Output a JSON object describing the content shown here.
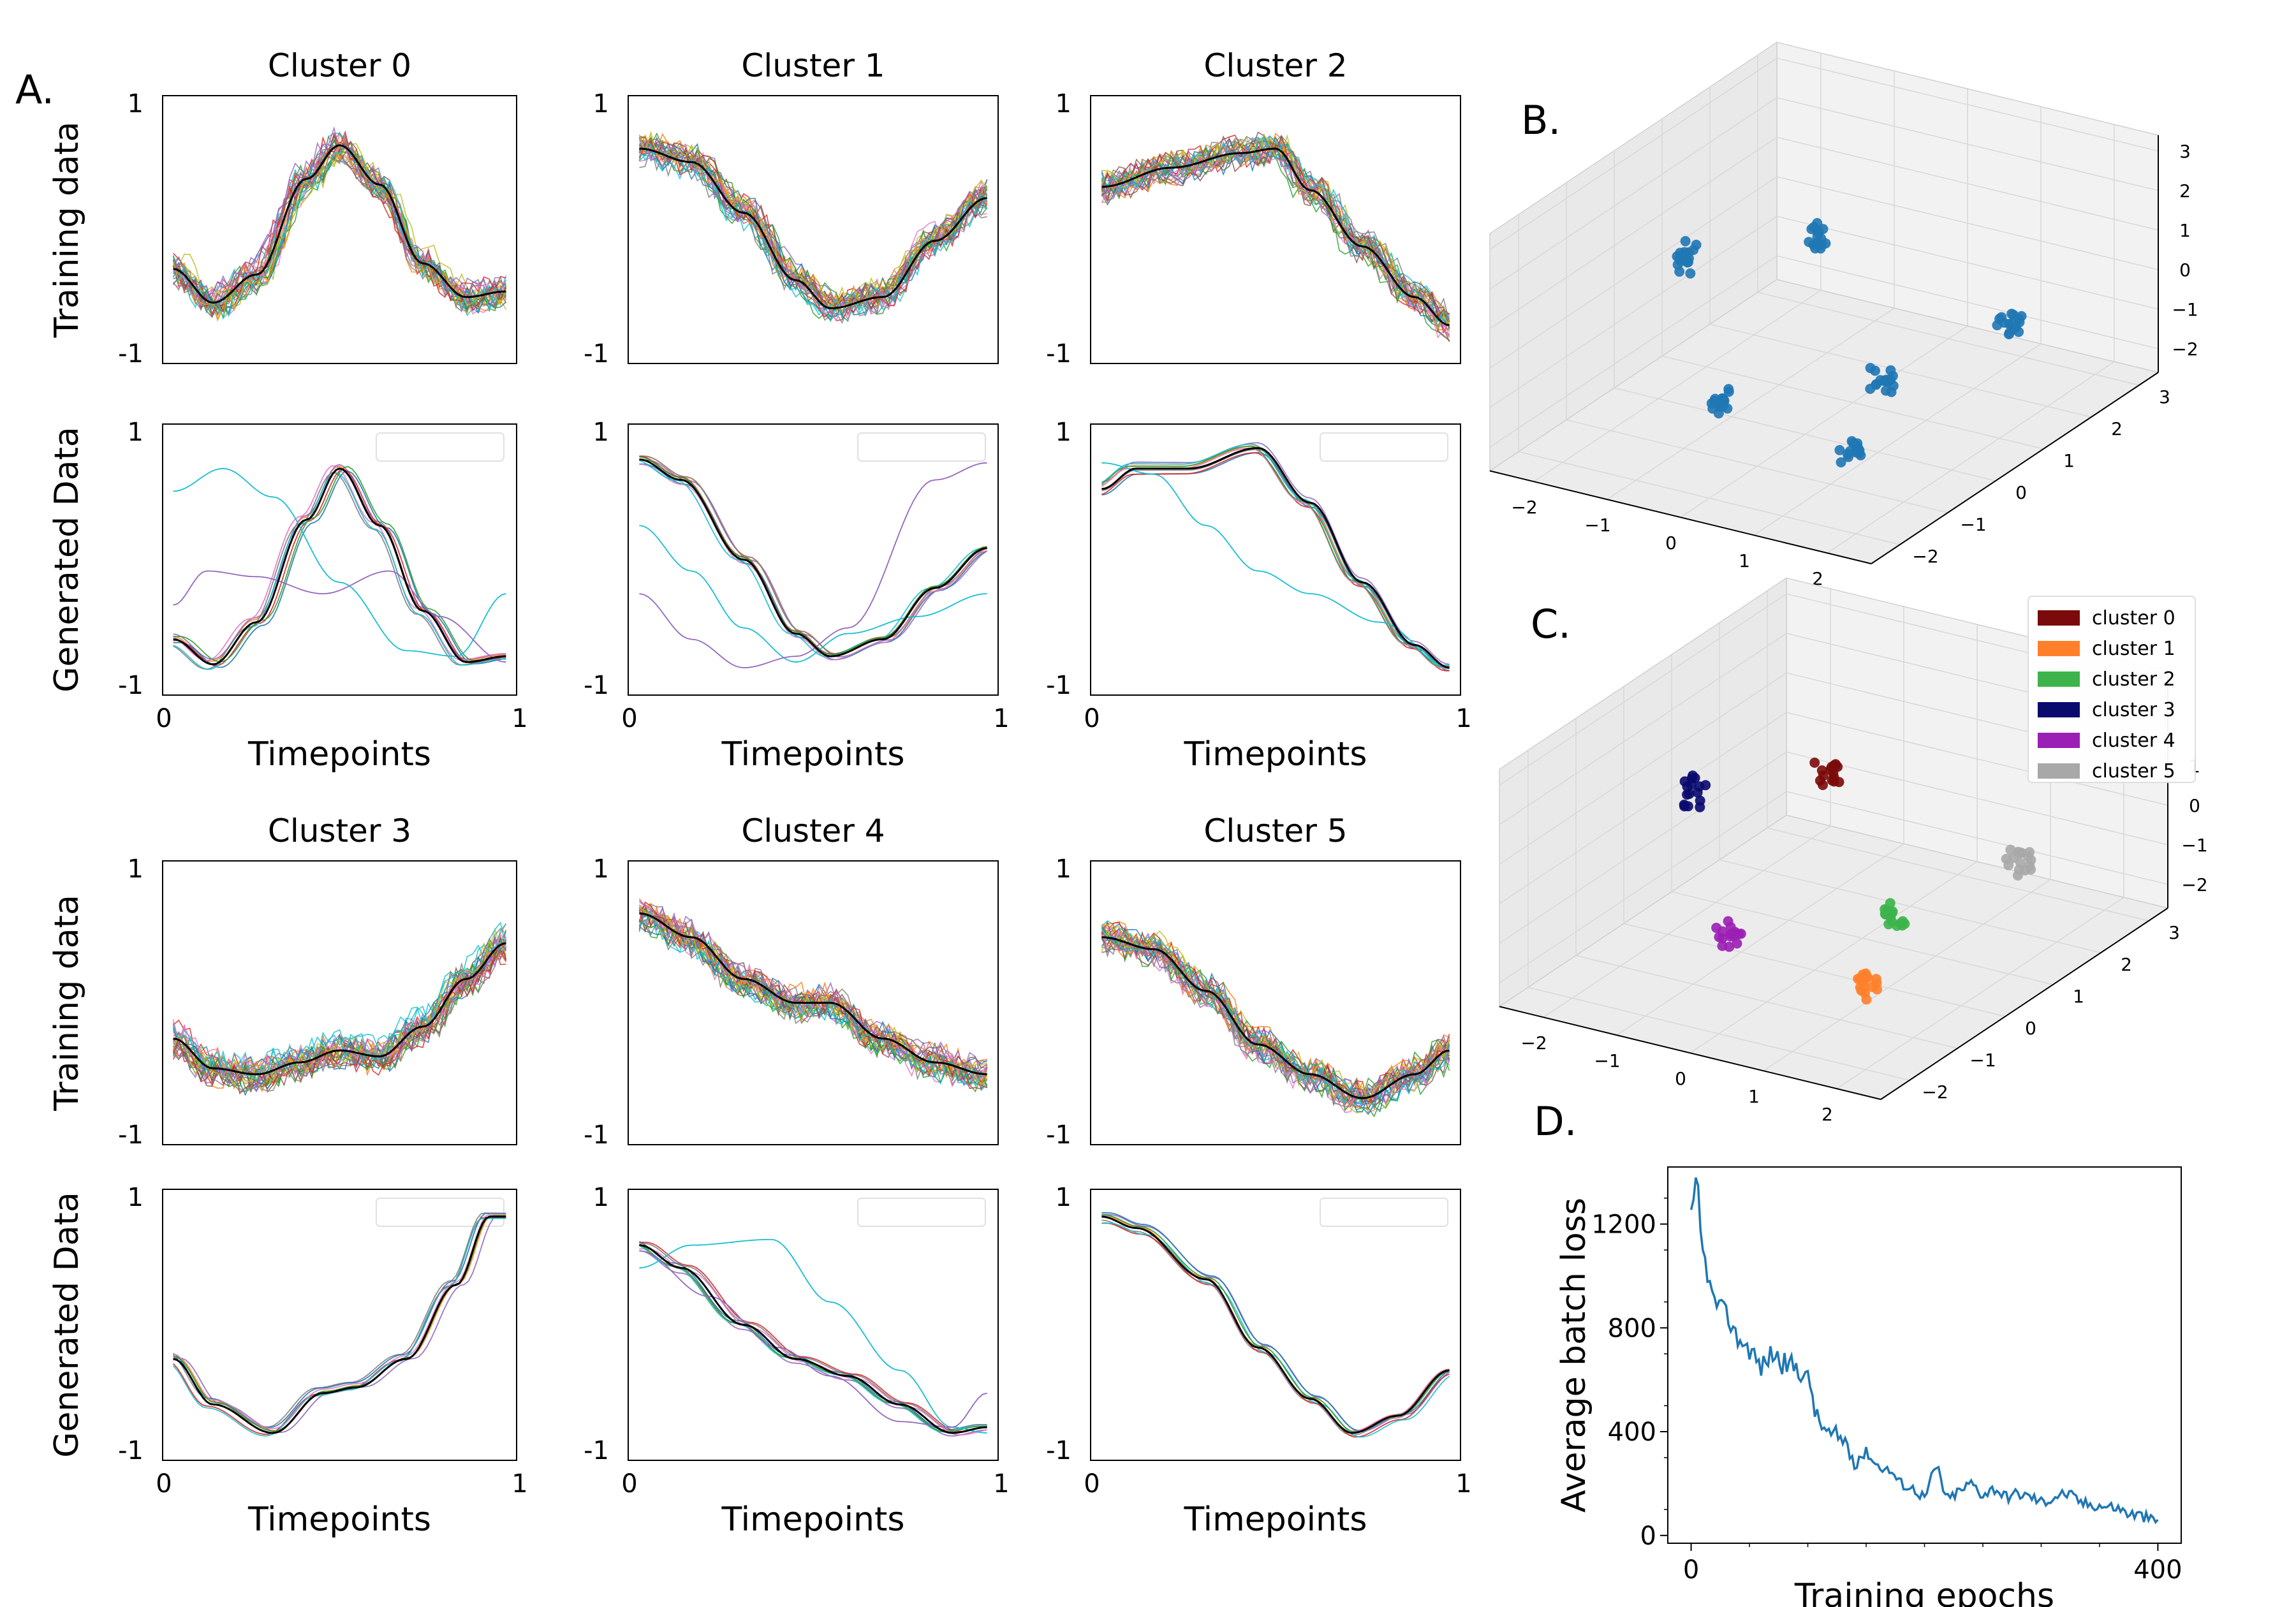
{
  "panel_labels": {
    "A": "A.",
    "B": "B.",
    "C": "C.",
    "D": "D."
  },
  "chart_data": [
    {
      "type": "line",
      "panel": "A",
      "title": "Cluster 0",
      "ylabel_training": "Training data",
      "ylabel_generated": "Generated  Data",
      "xlabel": "Timepoints",
      "xlim": [
        0,
        1
      ],
      "ylim": [
        -1,
        1
      ],
      "x_ticks": [
        "0",
        "1"
      ],
      "y_ticks": [
        "-1",
        "1"
      ],
      "training_mean": [
        [
          0.0,
          -0.35
        ],
        [
          0.12,
          -0.65
        ],
        [
          0.25,
          -0.4
        ],
        [
          0.4,
          0.45
        ],
        [
          0.5,
          0.75
        ],
        [
          0.62,
          0.4
        ],
        [
          0.75,
          -0.3
        ],
        [
          0.88,
          -0.6
        ],
        [
          1.0,
          -0.55
        ]
      ],
      "generated_mean": [
        [
          0.0,
          -0.7
        ],
        [
          0.12,
          -0.92
        ],
        [
          0.25,
          -0.55
        ],
        [
          0.4,
          0.35
        ],
        [
          0.5,
          0.8
        ],
        [
          0.62,
          0.3
        ],
        [
          0.75,
          -0.45
        ],
        [
          0.88,
          -0.9
        ],
        [
          1.0,
          -0.85
        ]
      ],
      "generated_outliers": [
        [
          [
            0.0,
            0.6
          ],
          [
            0.15,
            0.8
          ],
          [
            0.3,
            0.55
          ],
          [
            0.5,
            -0.2
          ],
          [
            0.7,
            -0.8
          ],
          [
            0.85,
            -0.85
          ],
          [
            1.0,
            -0.3
          ]
        ],
        [
          [
            0.0,
            -0.4
          ],
          [
            0.1,
            -0.1
          ],
          [
            0.25,
            -0.15
          ],
          [
            0.45,
            -0.3
          ],
          [
            0.65,
            -0.1
          ],
          [
            0.8,
            -0.5
          ],
          [
            1.0,
            -0.9
          ]
        ]
      ]
    },
    {
      "type": "line",
      "panel": "A",
      "title": "Cluster 1",
      "xlabel": "Timepoints",
      "xlim": [
        0,
        1
      ],
      "ylim": [
        -1,
        1
      ],
      "x_ticks": [
        "0",
        "1"
      ],
      "y_ticks": [
        "-1",
        "1"
      ],
      "training_mean": [
        [
          0.0,
          0.72
        ],
        [
          0.15,
          0.6
        ],
        [
          0.3,
          0.15
        ],
        [
          0.45,
          -0.45
        ],
        [
          0.55,
          -0.7
        ],
        [
          0.7,
          -0.6
        ],
        [
          0.85,
          -0.1
        ],
        [
          1.0,
          0.28
        ]
      ],
      "generated_mean": [
        [
          0.0,
          0.88
        ],
        [
          0.12,
          0.7
        ],
        [
          0.3,
          0.0
        ],
        [
          0.45,
          -0.65
        ],
        [
          0.55,
          -0.85
        ],
        [
          0.7,
          -0.7
        ],
        [
          0.85,
          -0.25
        ],
        [
          1.0,
          0.1
        ]
      ],
      "generated_outliers": [
        [
          [
            0.0,
            0.3
          ],
          [
            0.15,
            -0.1
          ],
          [
            0.3,
            -0.6
          ],
          [
            0.45,
            -0.9
          ],
          [
            0.6,
            -0.65
          ],
          [
            0.8,
            -0.5
          ],
          [
            1.0,
            -0.3
          ]
        ],
        [
          [
            0.0,
            -0.3
          ],
          [
            0.15,
            -0.7
          ],
          [
            0.3,
            -0.95
          ],
          [
            0.45,
            -0.85
          ],
          [
            0.6,
            -0.6
          ],
          [
            0.85,
            0.7
          ],
          [
            1.0,
            0.85
          ]
        ]
      ]
    },
    {
      "type": "line",
      "panel": "A",
      "title": "Cluster 2",
      "xlabel": "Timepoints",
      "xlim": [
        0,
        1
      ],
      "ylim": [
        -1,
        1
      ],
      "x_ticks": [
        "0",
        "1"
      ],
      "y_ticks": [
        "-1",
        "1"
      ],
      "training_mean": [
        [
          0.0,
          0.38
        ],
        [
          0.2,
          0.55
        ],
        [
          0.4,
          0.68
        ],
        [
          0.5,
          0.72
        ],
        [
          0.6,
          0.35
        ],
        [
          0.75,
          -0.15
        ],
        [
          0.9,
          -0.6
        ],
        [
          1.0,
          -0.85
        ]
      ],
      "generated_mean": [
        [
          0.0,
          0.62
        ],
        [
          0.1,
          0.8
        ],
        [
          0.25,
          0.8
        ],
        [
          0.45,
          0.98
        ],
        [
          0.6,
          0.5
        ],
        [
          0.75,
          -0.2
        ],
        [
          0.9,
          -0.75
        ],
        [
          1.0,
          -0.95
        ]
      ],
      "generated_outliers": [
        [
          [
            0.0,
            0.85
          ],
          [
            0.15,
            0.75
          ],
          [
            0.3,
            0.3
          ],
          [
            0.45,
            -0.1
          ],
          [
            0.6,
            -0.3
          ],
          [
            0.8,
            -0.55
          ],
          [
            1.0,
            -0.95
          ]
        ]
      ]
    },
    {
      "type": "line",
      "panel": "A",
      "title": "Cluster 3",
      "ylabel_training": "Training data",
      "ylabel_generated": "Generated  Data",
      "xlabel": "Timepoints",
      "xlim": [
        0,
        1
      ],
      "ylim": [
        -1,
        1
      ],
      "x_ticks": [
        "0",
        "1"
      ],
      "y_ticks": [
        "-1",
        "1"
      ],
      "training_mean": [
        [
          0.0,
          -0.3
        ],
        [
          0.12,
          -0.55
        ],
        [
          0.25,
          -0.6
        ],
        [
          0.38,
          -0.5
        ],
        [
          0.5,
          -0.4
        ],
        [
          0.62,
          -0.45
        ],
        [
          0.75,
          -0.2
        ],
        [
          0.88,
          0.2
        ],
        [
          1.0,
          0.5
        ]
      ],
      "generated_mean": [
        [
          0.0,
          -0.3
        ],
        [
          0.12,
          -0.7
        ],
        [
          0.3,
          -0.95
        ],
        [
          0.45,
          -0.6
        ],
        [
          0.55,
          -0.55
        ],
        [
          0.7,
          -0.3
        ],
        [
          0.85,
          0.35
        ],
        [
          0.95,
          0.95
        ],
        [
          1.0,
          0.95
        ]
      ],
      "generated_outliers": []
    },
    {
      "type": "line",
      "panel": "A",
      "title": "Cluster 4",
      "xlabel": "Timepoints",
      "xlim": [
        0,
        1
      ],
      "ylim": [
        -1,
        1
      ],
      "x_ticks": [
        "0",
        "1"
      ],
      "y_ticks": [
        "-1",
        "1"
      ],
      "training_mean": [
        [
          0.0,
          0.75
        ],
        [
          0.15,
          0.55
        ],
        [
          0.3,
          0.2
        ],
        [
          0.45,
          0.0
        ],
        [
          0.55,
          0.0
        ],
        [
          0.7,
          -0.3
        ],
        [
          0.85,
          -0.5
        ],
        [
          1.0,
          -0.6
        ]
      ],
      "generated_mean": [
        [
          0.0,
          0.7
        ],
        [
          0.12,
          0.5
        ],
        [
          0.3,
          0.0
        ],
        [
          0.45,
          -0.3
        ],
        [
          0.6,
          -0.45
        ],
        [
          0.75,
          -0.7
        ],
        [
          0.9,
          -0.95
        ],
        [
          1.0,
          -0.9
        ]
      ],
      "generated_outliers": [
        [
          [
            0.0,
            0.5
          ],
          [
            0.15,
            0.7
          ],
          [
            0.38,
            0.75
          ],
          [
            0.55,
            0.2
          ],
          [
            0.75,
            -0.4
          ],
          [
            0.9,
            -0.9
          ],
          [
            1.0,
            -0.95
          ]
        ],
        [
          [
            0.0,
            0.65
          ],
          [
            0.2,
            0.25
          ],
          [
            0.4,
            -0.2
          ],
          [
            0.55,
            -0.45
          ],
          [
            0.75,
            -0.85
          ],
          [
            0.9,
            -0.9
          ],
          [
            1.0,
            -0.6
          ]
        ]
      ]
    },
    {
      "type": "line",
      "panel": "A",
      "title": "Cluster 5",
      "xlabel": "Timepoints",
      "xlim": [
        0,
        1
      ],
      "ylim": [
        -1,
        1
      ],
      "x_ticks": [
        "0",
        "1"
      ],
      "y_ticks": [
        "-1",
        "1"
      ],
      "training_mean": [
        [
          0.0,
          0.55
        ],
        [
          0.15,
          0.45
        ],
        [
          0.3,
          0.1
        ],
        [
          0.45,
          -0.35
        ],
        [
          0.6,
          -0.6
        ],
        [
          0.75,
          -0.8
        ],
        [
          0.9,
          -0.6
        ],
        [
          1.0,
          -0.4
        ]
      ],
      "generated_mean": [
        [
          0.0,
          0.95
        ],
        [
          0.1,
          0.85
        ],
        [
          0.3,
          0.4
        ],
        [
          0.45,
          -0.2
        ],
        [
          0.6,
          -0.65
        ],
        [
          0.72,
          -0.95
        ],
        [
          0.85,
          -0.8
        ],
        [
          1.0,
          -0.4
        ]
      ],
      "generated_outliers": []
    },
    {
      "type": "scatter",
      "panel": "B",
      "subtype": "3d",
      "x_ticks": [
        "−2",
        "−1",
        "0",
        "1",
        "2"
      ],
      "y_ticks": [
        "−2",
        "−1",
        "0",
        "1",
        "2",
        "3"
      ],
      "z_ticks": [
        "−2",
        "−1",
        "0",
        "1",
        "2",
        "3"
      ],
      "color": "#1f77b4",
      "clusters": [
        {
          "center": [
            -0.8,
            1.5,
            0.8
          ]
        },
        {
          "center": [
            -2.0,
            0.6,
            0.5
          ]
        },
        {
          "center": [
            1.6,
            1.8,
            -0.6
          ]
        },
        {
          "center": [
            -0.5,
            -1.0,
            -1.2
          ]
        },
        {
          "center": [
            1.2,
            -0.8,
            -1.8
          ]
        },
        {
          "center": [
            0.6,
            0.7,
            -1.5
          ]
        }
      ]
    },
    {
      "type": "scatter",
      "panel": "C",
      "subtype": "3d",
      "x_ticks": [
        "−2",
        "−1",
        "0",
        "1",
        "2"
      ],
      "y_ticks": [
        "−2",
        "−1",
        "0",
        "1",
        "2",
        "3"
      ],
      "z_ticks": [
        "−2",
        "−1",
        "0",
        "1",
        "2",
        "3"
      ],
      "legend": [
        {
          "name": "cluster 0",
          "color": "#7b0a0a"
        },
        {
          "name": "cluster 1",
          "color": "#ff7f2a"
        },
        {
          "name": "cluster 2",
          "color": "#3cb44b"
        },
        {
          "name": "cluster 3",
          "color": "#0a0a6e"
        },
        {
          "name": "cluster 4",
          "color": "#9b1fb4"
        },
        {
          "name": "cluster 5",
          "color": "#a8a8a8"
        }
      ],
      "legend_position": "top-right"
    },
    {
      "type": "line",
      "panel": "D",
      "xlabel": "Training epochs",
      "ylabel": "Average batch loss",
      "xlim": [
        -20,
        420
      ],
      "ylim": [
        -30,
        1420
      ],
      "x_ticks": [
        0,
        400
      ],
      "y_ticks": [
        0,
        400,
        800,
        1200
      ],
      "color": "#1f77b4",
      "x": [
        0,
        5,
        10,
        20,
        30,
        40,
        50,
        60,
        70,
        80,
        90,
        100,
        110,
        120,
        130,
        140,
        150,
        160,
        170,
        180,
        190,
        200,
        210,
        220,
        230,
        240,
        250,
        260,
        270,
        280,
        290,
        300,
        320,
        340,
        360,
        380,
        400
      ],
      "values": [
        1220,
        1350,
        1080,
        900,
        850,
        760,
        720,
        650,
        700,
        660,
        650,
        600,
        430,
        380,
        370,
        300,
        320,
        270,
        250,
        200,
        180,
        150,
        260,
        140,
        170,
        200,
        160,
        180,
        150,
        160,
        150,
        130,
        160,
        120,
        110,
        80,
        55
      ]
    }
  ]
}
